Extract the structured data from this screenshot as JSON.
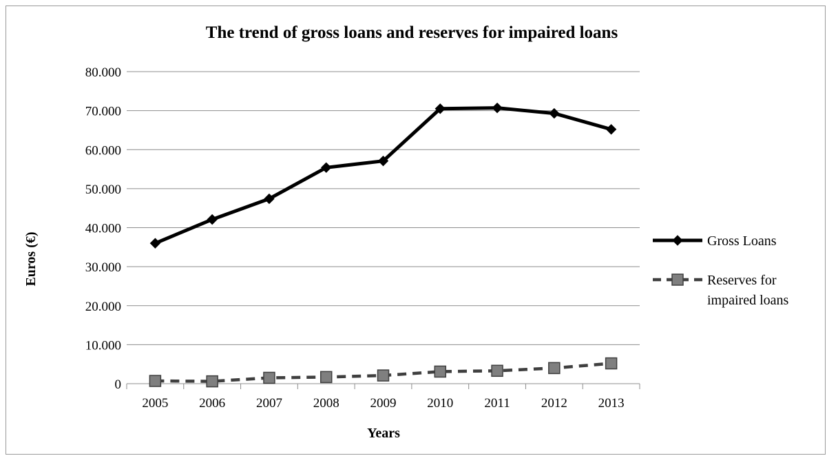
{
  "chart_data": {
    "type": "line",
    "title": "The trend of gross loans and reserves for impaired loans",
    "xlabel": "Years",
    "ylabel": "Euros (€)",
    "categories": [
      "2005",
      "2006",
      "2007",
      "2008",
      "2009",
      "2010",
      "2011",
      "2012",
      "2013"
    ],
    "ylim": [
      0,
      80000
    ],
    "yticks": [
      {
        "value": 0,
        "label": "0"
      },
      {
        "value": 10000,
        "label": "10.000"
      },
      {
        "value": 20000,
        "label": "20.000"
      },
      {
        "value": 30000,
        "label": "30.000"
      },
      {
        "value": 40000,
        "label": "40.000"
      },
      {
        "value": 50000,
        "label": "50.000"
      },
      {
        "value": 60000,
        "label": "60.000"
      },
      {
        "value": 70000,
        "label": "70.000"
      },
      {
        "value": 80000,
        "label": "80.000"
      }
    ],
    "grid": true,
    "legend": "right",
    "series": [
      {
        "name": "Gross Loans",
        "legend_lines": [
          "Gross Loans"
        ],
        "values": [
          36000,
          42100,
          47400,
          55400,
          57100,
          70500,
          70700,
          69300,
          65200
        ],
        "color": "#000000",
        "marker": "diamond",
        "dash": "solid"
      },
      {
        "name": "Reserves for impaired loans",
        "legend_lines": [
          "Reserves for",
          "impaired loans"
        ],
        "values": [
          700,
          600,
          1500,
          1700,
          2100,
          3100,
          3300,
          4000,
          5200
        ],
        "color": "#3f3f3f",
        "marker": "square",
        "marker_fill": "#7f7f7f",
        "dash": "dashed"
      }
    ]
  }
}
